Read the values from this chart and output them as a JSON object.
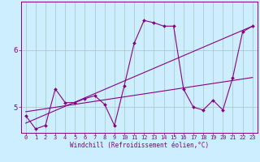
{
  "title": "",
  "xlabel": "Windchill (Refroidissement éolien,°C)",
  "bg_color": "#cceeff",
  "line_color": "#880088",
  "grid_color": "#aacccc",
  "axis_color": "#880088",
  "tick_color": "#880088",
  "xlim": [
    -0.5,
    23.5
  ],
  "ylim": [
    4.55,
    6.85
  ],
  "xticks": [
    0,
    1,
    2,
    3,
    4,
    5,
    6,
    7,
    8,
    9,
    10,
    11,
    12,
    13,
    14,
    15,
    16,
    17,
    18,
    19,
    20,
    21,
    22,
    23
  ],
  "yticks": [
    5,
    6
  ],
  "series1_x": [
    0,
    1,
    2,
    3,
    4,
    5,
    6,
    7,
    8,
    9,
    10,
    11,
    12,
    13,
    14,
    15,
    16,
    17,
    18,
    19,
    20,
    21,
    22,
    23
  ],
  "series1_y": [
    4.85,
    4.62,
    4.68,
    5.32,
    5.08,
    5.08,
    5.15,
    5.2,
    5.05,
    4.68,
    5.38,
    6.12,
    6.52,
    6.48,
    6.42,
    6.42,
    5.32,
    5.0,
    4.95,
    5.12,
    4.95,
    5.52,
    6.32,
    6.42
  ],
  "series2_x": [
    0,
    23
  ],
  "series2_y": [
    4.72,
    6.42
  ],
  "series3_x": [
    0,
    23
  ],
  "series3_y": [
    4.92,
    5.52
  ],
  "xlabel_fontsize": 5.5,
  "xtick_fontsize": 5.0,
  "ytick_fontsize": 6.5
}
